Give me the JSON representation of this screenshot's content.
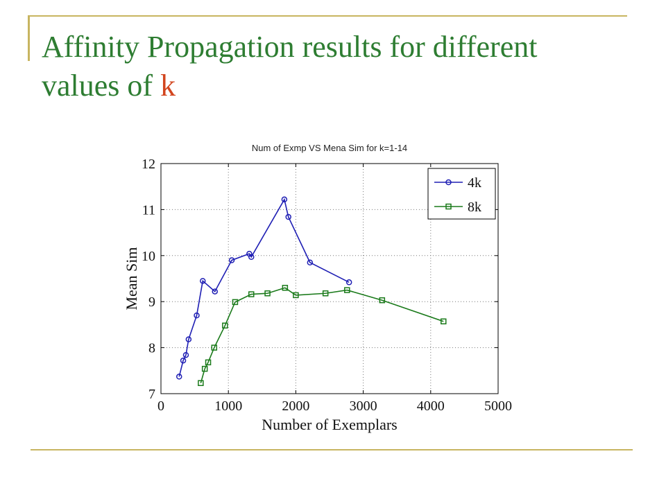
{
  "slide": {
    "title_part1": "Affinity Propagation results for different",
    "title_part2": "values of ",
    "title_accent": "k",
    "title_color": "#2e7d32",
    "accent_color": "#d2451e",
    "rule_color": "#c8b560"
  },
  "chart_data": {
    "type": "line",
    "title": "Num of Exmp VS Mena Sim for k=1-14",
    "xlabel": "Number of Exemplars",
    "ylabel": "Mean Sim",
    "xlim": [
      0,
      5000
    ],
    "ylim": [
      7,
      12
    ],
    "xticks": [
      "0",
      "1000",
      "2000",
      "3000",
      "4000",
      "5000"
    ],
    "yticks": [
      "7",
      "8",
      "9",
      "10",
      "11",
      "12"
    ],
    "grid": true,
    "legend_position": "top-right",
    "series": [
      {
        "name": "4k",
        "color": "#1f1fb4",
        "marker": "circle",
        "x": [
          270,
          330,
          370,
          410,
          530,
          620,
          800,
          1050,
          1310,
          1340,
          1830,
          1890,
          2210,
          2790
        ],
        "y": [
          7.37,
          7.72,
          7.84,
          8.18,
          8.7,
          9.45,
          9.22,
          9.9,
          10.04,
          9.97,
          11.22,
          10.84,
          9.85,
          9.42
        ]
      },
      {
        "name": "8k",
        "color": "#1a7a1a",
        "marker": "square",
        "x": [
          590,
          650,
          700,
          790,
          950,
          1100,
          1340,
          1580,
          1840,
          2000,
          2440,
          2760,
          3280,
          4190
        ],
        "y": [
          7.23,
          7.54,
          7.68,
          8.0,
          8.48,
          8.99,
          9.16,
          9.18,
          9.3,
          9.14,
          9.18,
          9.25,
          9.03,
          8.57
        ]
      }
    ]
  }
}
